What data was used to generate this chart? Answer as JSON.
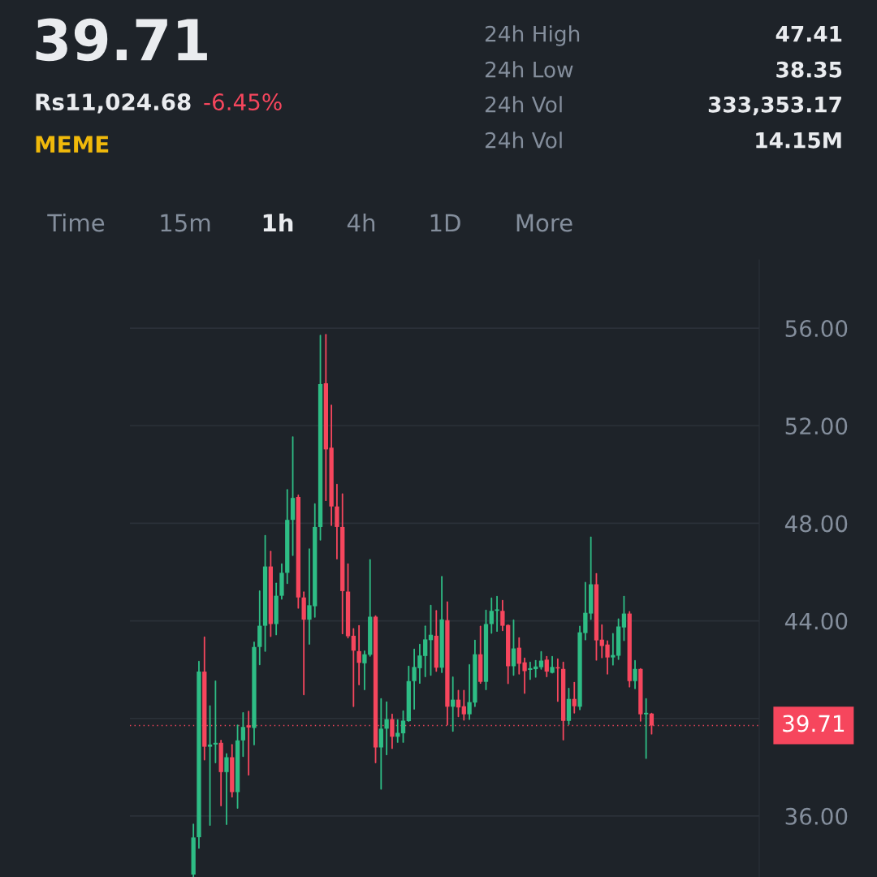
{
  "chart_data": {
    "type": "candlestick",
    "title": "39.71",
    "annotations": [
      "Rs11,024.68",
      "-6.45%",
      "MEME",
      "24h High",
      "47.41",
      "24h Low",
      "38.35",
      "24h Vol",
      "333,353.17",
      "24h Vol",
      "14.15M",
      "Time",
      "15m",
      "1h",
      "4h",
      "1D",
      "More"
    ],
    "categories": [
      null,
      null,
      null,
      null,
      null,
      null,
      null,
      null,
      null,
      null,
      null,
      null,
      null,
      null,
      null,
      null,
      null,
      null,
      null,
      null,
      null,
      null,
      null,
      null,
      null,
      null,
      null,
      null,
      null,
      null,
      null,
      null,
      null,
      null,
      null,
      null,
      null,
      null,
      null,
      null,
      null,
      null,
      null,
      null,
      null,
      null,
      null,
      null,
      null,
      null,
      null,
      null,
      null,
      null,
      null,
      null,
      null,
      null,
      null,
      null,
      null,
      null,
      null,
      null,
      null,
      null,
      null,
      null,
      null,
      null,
      null,
      null,
      null,
      null,
      null,
      null,
      null,
      null,
      null,
      null,
      null,
      null,
      null,
      null,
      null,
      null,
      null,
      null,
      null,
      null,
      null,
      null,
      null,
      null,
      null,
      null,
      null,
      null,
      null,
      null,
      null,
      null,
      null,
      null,
      null,
      null,
      null,
      null,
      null,
      null,
      null,
      null,
      null,
      null
    ],
    "ohlc": [
      null,
      null,
      null,
      null,
      null,
      null,
      null,
      null,
      null,
      null,
      null,
      [
        33.6,
        35.66,
        33.5,
        35.12
      ],
      [
        35.13,
        42.33,
        34.69,
        41.92
      ],
      [
        41.92,
        43.33,
        38.31,
        38.84
      ],
      [
        38.84,
        40.51,
        35.63,
        38.93
      ],
      [
        38.93,
        41.53,
        38.19,
        39.0
      ],
      [
        39.0,
        39.1,
        36.43,
        37.8
      ],
      [
        37.8,
        38.55,
        35.66,
        38.41
      ],
      [
        38.41,
        38.92,
        36.79,
        36.98
      ],
      [
        36.98,
        39.72,
        36.33,
        39.1
      ],
      [
        39.1,
        40.23,
        38.45,
        39.65
      ],
      [
        39.72,
        40.29,
        37.69,
        39.63
      ],
      [
        39.61,
        43.12,
        38.93,
        42.93
      ],
      [
        42.93,
        45.22,
        42.21,
        43.8
      ],
      [
        43.8,
        47.49,
        42.76,
        46.23
      ],
      [
        46.23,
        46.84,
        43.37,
        43.87
      ],
      [
        43.87,
        45.54,
        43.44,
        45.03
      ],
      [
        45.03,
        46.33,
        44.9,
        45.97
      ],
      [
        45.97,
        49.37,
        45.54,
        48.14
      ],
      [
        48.14,
        51.54,
        46.69,
        49.04
      ],
      [
        49.08,
        49.15,
        44.53,
        44.96
      ],
      [
        44.96,
        45.18,
        40.98,
        44.05
      ],
      [
        44.05,
        46.94,
        43.05,
        44.64
      ],
      [
        44.6,
        48.79,
        44.16,
        47.85
      ],
      [
        47.85,
        55.7,
        47.32,
        53.71
      ],
      [
        53.74,
        55.73,
        48.94,
        51.03
      ],
      [
        51.1,
        52.84,
        47.92,
        48.69
      ],
      [
        48.69,
        49.59,
        46.55,
        47.85
      ],
      [
        47.85,
        49.2,
        43.48,
        45.22
      ],
      [
        45.2,
        46.33,
        43.31,
        43.37
      ],
      [
        43.39,
        43.67,
        40.5,
        42.78
      ],
      [
        42.76,
        43.8,
        41.39,
        42.28
      ],
      [
        42.26,
        42.76,
        41.19,
        42.63
      ],
      [
        42.61,
        46.5,
        42.56,
        44.17
      ],
      [
        44.17,
        44.2,
        38.19,
        38.81
      ],
      [
        38.81,
        40.8,
        37.11,
        39.58
      ],
      [
        39.58,
        40.67,
        38.52,
        39.97
      ],
      [
        39.97,
        40.17,
        38.78,
        39.25
      ],
      [
        39.25,
        39.94,
        39.03,
        39.41
      ],
      [
        39.39,
        40.3,
        39.03,
        39.91
      ],
      [
        39.89,
        42.13,
        39.89,
        41.53
      ],
      [
        41.53,
        42.83,
        40.39,
        42.11
      ],
      [
        42.06,
        43.03,
        41.45,
        42.58
      ],
      [
        42.56,
        43.78,
        41.72,
        43.24
      ],
      [
        43.21,
        44.63,
        41.78,
        43.43
      ],
      [
        43.39,
        44.41,
        41.94,
        42.08
      ],
      [
        42.08,
        45.81,
        41.89,
        44.06
      ],
      [
        44.03,
        44.77,
        39.74,
        40.48
      ],
      [
        40.48,
        41.69,
        39.48,
        40.77
      ],
      [
        40.77,
        41.14,
        40.08,
        40.45
      ],
      [
        40.5,
        41.14,
        39.94,
        40.17
      ],
      [
        40.17,
        42.2,
        39.97,
        40.67
      ],
      [
        40.65,
        43.2,
        40.5,
        42.63
      ],
      [
        42.63,
        43.77,
        41.45,
        41.5
      ],
      [
        41.5,
        44.43,
        41.19,
        43.87
      ],
      [
        43.87,
        44.93,
        43.5,
        44.41
      ],
      [
        44.41,
        45.0,
        43.58,
        44.47
      ],
      [
        44.41,
        44.83,
        43.61,
        43.8
      ],
      [
        43.83,
        43.83,
        41.44,
        42.14
      ],
      [
        42.14,
        44.03,
        41.78,
        42.87
      ],
      [
        42.9,
        43.3,
        41.83,
        42.24
      ],
      [
        42.3,
        42.47,
        41.04,
        41.94
      ],
      [
        41.99,
        42.3,
        41.61,
        42.06
      ],
      [
        42.02,
        42.37,
        41.7,
        42.13
      ],
      [
        42.1,
        42.73,
        42.03,
        42.37
      ],
      [
        42.41,
        42.53,
        41.72,
        41.92
      ],
      [
        41.87,
        42.53,
        41.87,
        42.11
      ],
      [
        42.1,
        42.43,
        40.71,
        42.05
      ],
      [
        42.03,
        42.3,
        39.13,
        39.9
      ],
      [
        39.9,
        41.23,
        39.76,
        40.8
      ],
      [
        40.8,
        41.47,
        40.23,
        40.5
      ],
      [
        40.48,
        43.77,
        40.37,
        43.53
      ],
      [
        43.5,
        45.57,
        43.23,
        44.33
      ],
      [
        44.3,
        47.43,
        44.07,
        45.5
      ],
      [
        45.5,
        45.93,
        42.4,
        43.2
      ],
      [
        43.23,
        43.83,
        42.5,
        42.97
      ],
      [
        43.03,
        43.17,
        41.83,
        42.5
      ],
      [
        42.5,
        43.47,
        42.2,
        42.6
      ],
      [
        42.57,
        44.07,
        42.43,
        43.77
      ],
      [
        43.73,
        45.0,
        43.2,
        44.3
      ],
      [
        44.3,
        44.37,
        41.3,
        41.53
      ],
      [
        41.53,
        42.37,
        41.23,
        42.03
      ],
      [
        42.03,
        42.03,
        39.9,
        40.17
      ],
      [
        40.17,
        40.8,
        38.37,
        40.23
      ],
      [
        40.2,
        40.2,
        39.37,
        39.71
      ],
      null,
      null,
      null,
      null,
      null,
      null,
      null,
      null,
      null,
      null,
      null,
      null,
      null,
      null,
      null,
      null,
      null,
      null,
      null
    ],
    "ylim": [
      33.5,
      58.8
    ],
    "yticks": [
      {
        "value": 36,
        "label": "36.00"
      },
      {
        "value": 40,
        "label": null
      },
      {
        "value": 44,
        "label": "44.00"
      },
      {
        "value": 48,
        "label": "48.00"
      },
      {
        "value": 52,
        "label": "52.00"
      },
      {
        "value": 56,
        "label": "56.00"
      }
    ],
    "ref_lines": [
      {
        "axis": "y",
        "value": 39.71,
        "label": "39.71",
        "color": "#f6465d",
        "line_style": "dotted"
      }
    ],
    "grid": "y",
    "tick_labels": "y"
  }
}
